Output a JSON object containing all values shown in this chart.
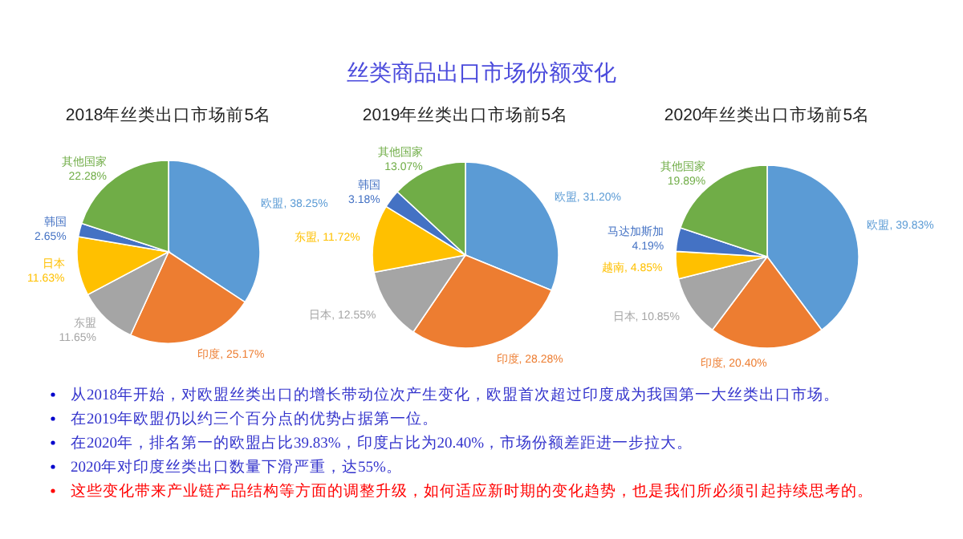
{
  "chart_data": [
    {
      "type": "other",
      "title": "丝类商品出口市场份额变化",
      "annotations": [
        "从2018年开始，对欧盟丝类出口的增长带动位次产生变化，欧盟首次超过印度成为我国第一大丝类出口市场。",
        "在2019年欧盟仍以约三个百分点的优势占据第一位。",
        "在2020年，排名第一的欧盟占比39.83%，印度占比为20.40%，市场份额差距进一步拉大。",
        "2020年对印度丝类出口数量下滑严重，达55%。",
        "这些变化带来产业链产品结构等方面的调整升级，如何适应新时期的变化趋势，也是我们所必须引起持续思考的。"
      ],
      "colors": [
        "#3333cc",
        "#3333cc",
        "#3333cc",
        "#3333cc",
        "#ff0000"
      ]
    },
    {
      "type": "pie",
      "title": "2018年丝类出口市场前5名",
      "categories": [
        "欧盟",
        "印度",
        "东盟",
        "日本",
        "韩国",
        "其他国家"
      ],
      "values": [
        38.25,
        25.17,
        11.65,
        11.63,
        2.65,
        22.28
      ],
      "value_labels": [
        "38.25%",
        "25.17%",
        "11.65%",
        "11.63%",
        "2.65%",
        "22.28%"
      ],
      "colors": [
        "#5b9bd5",
        "#ed7d31",
        "#a5a5a5",
        "#ffc000",
        "#4472c4",
        "#70ad47"
      ]
    },
    {
      "type": "pie",
      "title": "2019年丝类出口市场前5名",
      "categories": [
        "欧盟",
        "印度",
        "日本",
        "东盟",
        "韩国",
        "其他国家"
      ],
      "values": [
        31.2,
        28.28,
        12.55,
        11.72,
        3.18,
        13.07
      ],
      "value_labels": [
        "31.20%",
        "28.28%",
        "12.55%",
        "11.72%",
        "3.18%",
        "13.07%"
      ],
      "colors": [
        "#5b9bd5",
        "#ed7d31",
        "#a5a5a5",
        "#ffc000",
        "#4472c4",
        "#70ad47"
      ]
    },
    {
      "type": "pie",
      "title": "2020年丝类出口市场前5名",
      "categories": [
        "欧盟",
        "印度",
        "日本",
        "越南",
        "马达加斯加",
        "其他国家"
      ],
      "values": [
        39.83,
        20.4,
        10.85,
        4.85,
        4.19,
        19.89
      ],
      "value_labels": [
        "39.83%",
        "20.40%",
        "10.85%",
        "4.85%",
        "4.19%",
        "19.89%"
      ],
      "colors": [
        "#5b9bd5",
        "#ed7d31",
        "#a5a5a5",
        "#ffc000",
        "#4472c4",
        "#70ad47"
      ]
    }
  ]
}
